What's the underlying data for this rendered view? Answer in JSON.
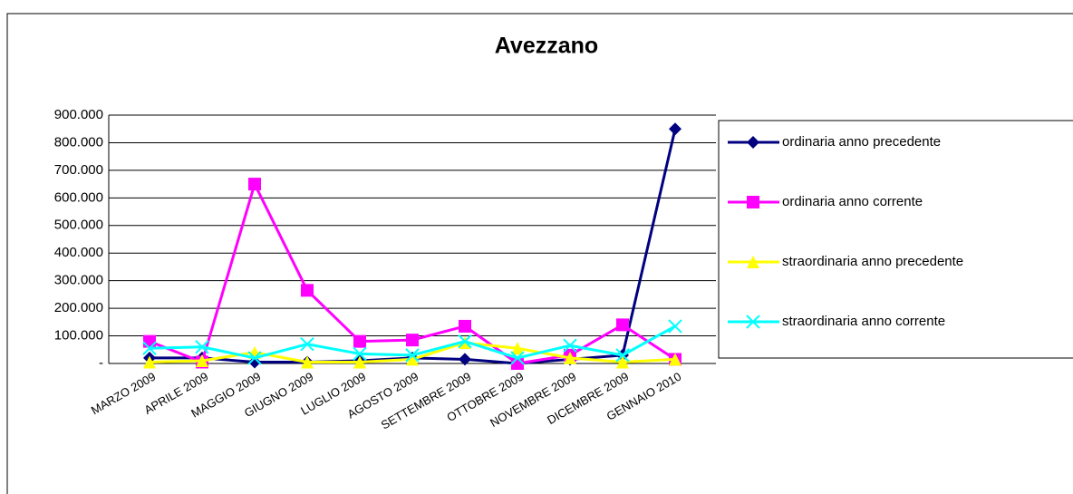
{
  "chart_data": {
    "type": "line",
    "title": "Avezzano",
    "categories": [
      "MARZO 2009",
      "APRILE 2009",
      "MAGGIO 2009",
      "GIUGNO 2009",
      "LUGLIO 2009",
      "AGOSTO 2009",
      "SETTEMBRE 2009",
      "OTTOBRE 2009",
      "NOVEMBRE 2009",
      "DICEMBRE 2009",
      "GENNAIO 2010"
    ],
    "series": [
      {
        "name": "ordinaria anno precedente",
        "color": "#000080",
        "marker": "diamond",
        "values": [
          20000,
          20000,
          5000,
          5000,
          10000,
          20000,
          15000,
          0,
          15000,
          30000,
          850000
        ]
      },
      {
        "name": "ordinaria anno corrente",
        "color": "#ff00ff",
        "marker": "square",
        "values": [
          80000,
          5000,
          650000,
          265000,
          80000,
          85000,
          135000,
          0,
          30000,
          140000,
          15000
        ]
      },
      {
        "name": "straordinaria anno precedente",
        "color": "#ffff00",
        "marker": "triangle",
        "values": [
          5000,
          10000,
          40000,
          5000,
          5000,
          15000,
          75000,
          55000,
          20000,
          5000,
          15000
        ]
      },
      {
        "name": "straordinaria anno corrente",
        "color": "#00ffff",
        "marker": "x",
        "values": [
          55000,
          60000,
          20000,
          70000,
          35000,
          30000,
          80000,
          20000,
          65000,
          30000,
          135000
        ]
      }
    ],
    "ylim": [
      0,
      900000
    ],
    "yticks": [
      {
        "value": 0,
        "label": "-"
      },
      {
        "value": 100000,
        "label": "100.000"
      },
      {
        "value": 200000,
        "label": "200.000"
      },
      {
        "value": 300000,
        "label": "300.000"
      },
      {
        "value": 400000,
        "label": "400.000"
      },
      {
        "value": 500000,
        "label": "500.000"
      },
      {
        "value": 600000,
        "label": "600.000"
      },
      {
        "value": 700000,
        "label": "700.000"
      },
      {
        "value": 800000,
        "label": "800.000"
      },
      {
        "value": 900000,
        "label": "900.000"
      }
    ],
    "grid": true,
    "legend": "right"
  }
}
